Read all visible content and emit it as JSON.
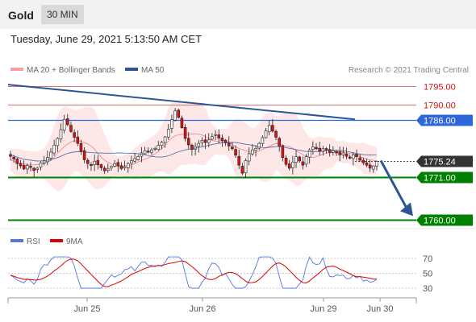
{
  "header": {
    "symbol": "Gold",
    "timeframe": "30 MIN",
    "datetime": "Tuesday, June 29, 2021 5:13:50 AM CET"
  },
  "colors": {
    "bollinger": "#f08080",
    "ma50": "#2c5696",
    "resistance": "#e07070",
    "pivot_blue": "#2e67d9",
    "support_green": "#008000",
    "current": "#333333",
    "rsi": "#5577dd",
    "rsi_ma": "#dd0000",
    "trendline": "#2c5696"
  },
  "legend": {
    "bollinger_label": "MA 20 + Bollinger Bands",
    "ma50_label": "MA 50",
    "credit": "Research © 2021 Trading Central"
  },
  "chart_data": [
    {
      "type": "candlestick",
      "x_ticks": [
        "Jun 25",
        "Jun 26",
        "Jun 29",
        "Jun 30"
      ],
      "ylim": [
        1758,
        1797
      ],
      "price_levels": [
        {
          "label": "1795.00",
          "value": 1795.0,
          "kind": "resistance"
        },
        {
          "label": "1790.00",
          "value": 1790.0,
          "kind": "resistance"
        },
        {
          "label": "1786.00",
          "value": 1786.0,
          "kind": "pivot"
        },
        {
          "label": "1775.24",
          "value": 1775.24,
          "kind": "current"
        },
        {
          "label": "1771.00",
          "value": 1771.0,
          "kind": "support"
        },
        {
          "label": "1760.00",
          "value": 1760.0,
          "kind": "support"
        }
      ],
      "close": [
        1776.5,
        1775.8,
        1774.6,
        1774.0,
        1773.2,
        1774.1,
        1773.6,
        1772.8,
        1773.4,
        1774.8,
        1775.3,
        1776.2,
        1777.6,
        1779.4,
        1781.2,
        1783.5,
        1786.2,
        1784.8,
        1783.0,
        1781.5,
        1779.9,
        1777.8,
        1775.6,
        1774.6,
        1774.1,
        1775.2,
        1774.3,
        1773.5,
        1772.7,
        1773.2,
        1773.9,
        1774.6,
        1774.0,
        1773.3,
        1773.8,
        1774.6,
        1775.4,
        1775.9,
        1776.5,
        1777.4,
        1778.0,
        1777.6,
        1778.2,
        1778.6,
        1779.4,
        1780.2,
        1781.6,
        1783.6,
        1786.1,
        1788.4,
        1786.7,
        1784.0,
        1781.2,
        1779.5,
        1778.3,
        1779.1,
        1779.9,
        1780.7,
        1780.1,
        1780.8,
        1781.7,
        1782.2,
        1781.3,
        1780.6,
        1780.0,
        1779.2,
        1778.5,
        1776.8,
        1774.2,
        1772.1,
        1775.4,
        1777.2,
        1778.2,
        1778.6,
        1779.9,
        1781.4,
        1783.2,
        1784.6,
        1783.1,
        1781.5,
        1779.1,
        1776.2,
        1774.4,
        1773.4,
        1775.0,
        1776.4,
        1775.3,
        1774.2,
        1776.4,
        1778.2,
        1779.0,
        1778.5,
        1777.9,
        1778.5,
        1778.1,
        1777.5,
        1778.0,
        1777.4,
        1776.9,
        1777.4,
        1776.5,
        1776.0,
        1776.9,
        1776.4,
        1775.5,
        1774.8,
        1774.2,
        1773.4,
        1774.0,
        1775.2
      ],
      "rsi": {
        "ylim": [
          20,
          80
        ],
        "ticks": [
          30,
          50,
          70
        ],
        "series_labels": [
          "RSI",
          "9MA"
        ]
      },
      "trendline_label": "",
      "forecast": "down to 1760.00"
    }
  ]
}
